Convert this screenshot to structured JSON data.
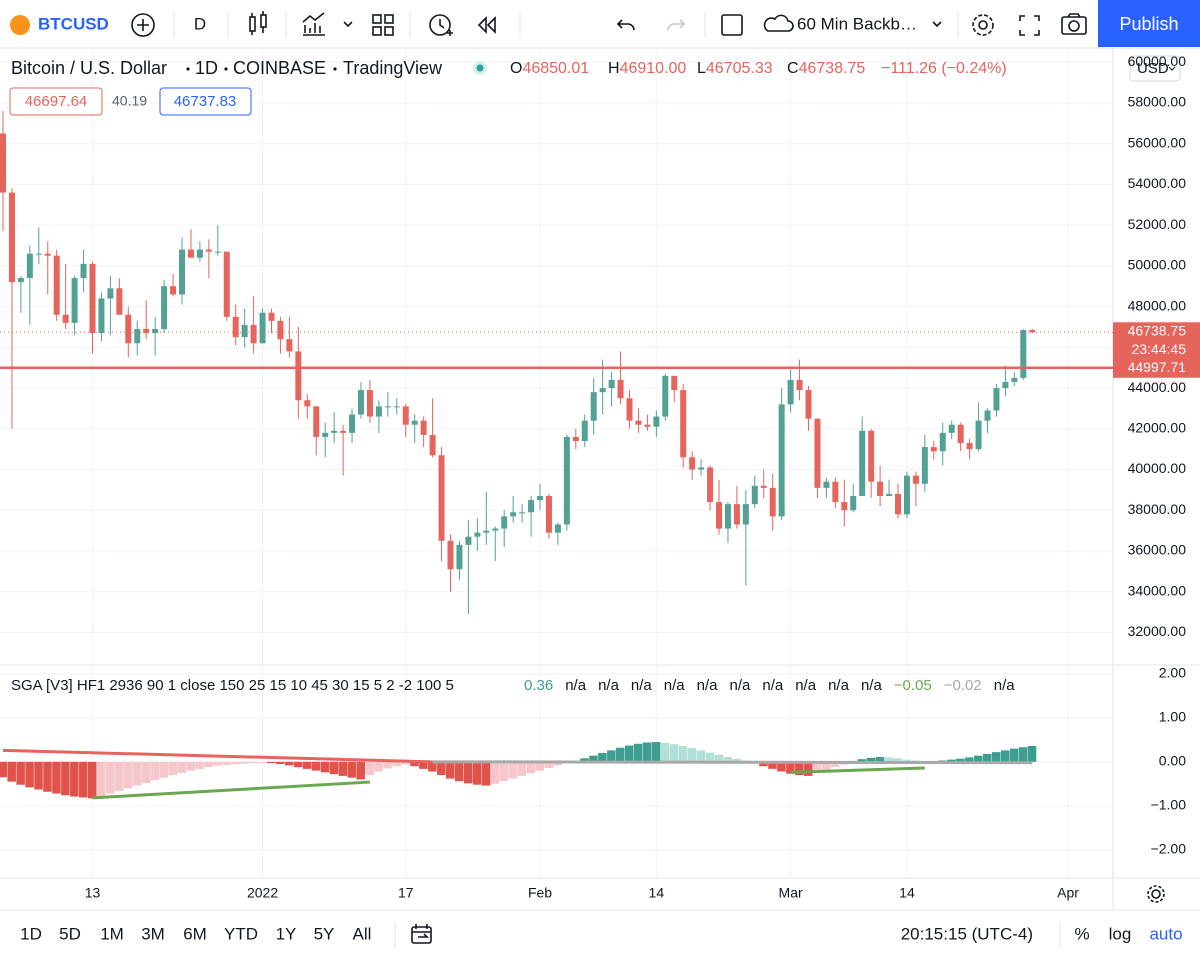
{
  "toolbar": {
    "symbol": "BTCUSD",
    "interval": "D",
    "layout_name": "60 Min Backb…",
    "publish": "Publish"
  },
  "legend": {
    "title": "Bitcoin / U.S. Dollar",
    "interval": "1D",
    "exchange": "COINBASE",
    "source": "TradingView",
    "ohlc": [
      {
        "label": "O",
        "value": "46850.01"
      },
      {
        "label": "H",
        "value": "46910.00"
      },
      {
        "label": "L",
        "value": "46705.33"
      },
      {
        "label": "C",
        "value": "46738.75"
      }
    ],
    "change": "−111.26 (−0.24%)",
    "bid": "46697.64",
    "spread": "40.19",
    "ask": "46737.83"
  },
  "currency": "USD",
  "chart_data": [
    {
      "type": "candlestick",
      "up_color": "#53a195",
      "down_color": "#e5645c",
      "x": [
        "2021-12-03",
        "2021-12-04",
        "2021-12-05",
        "2021-12-06",
        "2021-12-07",
        "2021-12-08",
        "2021-12-09",
        "2021-12-10",
        "2021-12-11",
        "2021-12-12",
        "2021-12-13",
        "2021-12-14",
        "2021-12-15",
        "2021-12-16",
        "2021-12-17",
        "2021-12-18",
        "2021-12-19",
        "2021-12-20",
        "2021-12-21",
        "2021-12-22",
        "2021-12-23",
        "2021-12-24",
        "2021-12-25",
        "2021-12-26",
        "2021-12-27",
        "2021-12-28",
        "2021-12-29",
        "2021-12-30",
        "2021-12-31",
        "2022-01-01",
        "2022-01-02",
        "2022-01-03",
        "2022-01-04",
        "2022-01-05",
        "2022-01-06",
        "2022-01-07",
        "2022-01-08",
        "2022-01-09",
        "2022-01-10",
        "2022-01-11",
        "2022-01-12",
        "2022-01-13",
        "2022-01-14",
        "2022-01-15",
        "2022-01-16",
        "2022-01-17",
        "2022-01-18",
        "2022-01-19",
        "2022-01-20",
        "2022-01-21",
        "2022-01-22",
        "2022-01-23",
        "2022-01-24",
        "2022-01-25",
        "2022-01-26",
        "2022-01-27",
        "2022-01-28",
        "2022-01-29",
        "2022-01-30",
        "2022-01-31",
        "2022-02-01",
        "2022-02-02",
        "2022-02-03",
        "2022-02-04",
        "2022-02-05",
        "2022-02-06",
        "2022-02-07",
        "2022-02-08",
        "2022-02-09",
        "2022-02-10",
        "2022-02-11",
        "2022-02-12",
        "2022-02-13",
        "2022-02-14",
        "2022-02-15",
        "2022-02-16",
        "2022-02-17",
        "2022-02-18",
        "2022-02-19",
        "2022-02-20",
        "2022-02-21",
        "2022-02-22",
        "2022-02-23",
        "2022-02-24",
        "2022-02-25",
        "2022-02-26",
        "2022-02-27",
        "2022-02-28",
        "2022-03-01",
        "2022-03-02",
        "2022-03-03",
        "2022-03-04",
        "2022-03-05",
        "2022-03-06",
        "2022-03-07",
        "2022-03-08",
        "2022-03-09",
        "2022-03-10",
        "2022-03-11",
        "2022-03-12",
        "2022-03-13",
        "2022-03-14",
        "2022-03-15",
        "2022-03-16",
        "2022-03-17",
        "2022-03-18",
        "2022-03-19",
        "2022-03-20",
        "2022-03-21",
        "2022-03-22",
        "2022-03-23",
        "2022-03-24",
        "2022-03-25",
        "2022-03-26",
        "2022-03-27",
        "2022-03-28"
      ],
      "open": [
        56500,
        53600,
        49200,
        49400,
        50600,
        50600,
        50500,
        47600,
        47200,
        49400,
        50100,
        46700,
        48400,
        48900,
        47600,
        46200,
        46900,
        46700,
        46900,
        49000,
        48600,
        50800,
        50400,
        50800,
        50700,
        50700,
        47500,
        46500,
        47100,
        46200,
        47700,
        47300,
        46400,
        45800,
        43400,
        43100,
        41600,
        41800,
        41900,
        41800,
        42700,
        43900,
        42600,
        43100,
        43100,
        43100,
        42200,
        42400,
        41700,
        40700,
        36500,
        35100,
        36300,
        36700,
        36900,
        37000,
        37100,
        37700,
        37900,
        37900,
        38500,
        38700,
        36900,
        37300,
        41600,
        41400,
        42400,
        43800,
        44000,
        44400,
        43500,
        42400,
        42200,
        42100,
        42600,
        44600,
        43900,
        40600,
        40000,
        40100,
        38400,
        37100,
        38300,
        37300,
        38300,
        39200,
        39100,
        37700,
        43200,
        44400,
        43900,
        42500,
        39100,
        39400,
        38400,
        38000,
        38700,
        41900,
        39400,
        38700,
        38800,
        37800,
        39700,
        39300,
        41100,
        40900,
        41800,
        42200,
        41300,
        41000,
        42400,
        42900,
        44000,
        44300,
        44500,
        46850.01
      ],
      "high": [
        57600,
        53800,
        49500,
        51000,
        51900,
        51200,
        50800,
        50100,
        49500,
        50800,
        50200,
        48700,
        49500,
        49400,
        48000,
        47300,
        48300,
        47500,
        49300,
        49600,
        51400,
        51800,
        51200,
        51300,
        52000,
        50700,
        48100,
        47900,
        48500,
        47900,
        47900,
        47500,
        47500,
        47000,
        43700,
        43100,
        42300,
        42800,
        42200,
        43000,
        44300,
        44400,
        43400,
        43800,
        43500,
        43200,
        42700,
        42600,
        43500,
        41100,
        36800,
        36500,
        37500,
        37600,
        38900,
        37200,
        38000,
        38700,
        38300,
        38700,
        39300,
        38800,
        37400,
        41700,
        42000,
        42700,
        44500,
        45400,
        44800,
        45800,
        43900,
        43000,
        42700,
        42900,
        44700,
        44600,
        44200,
        40900,
        40500,
        40200,
        39500,
        38400,
        39200,
        39000,
        39700,
        40000,
        39800,
        44000,
        44900,
        45400,
        44100,
        42500,
        39600,
        39600,
        39500,
        39300,
        42600,
        42000,
        40200,
        39500,
        39300,
        39900,
        39900,
        41700,
        41400,
        42300,
        42400,
        42300,
        41500,
        43300,
        43000,
        44200,
        45100,
        44800,
        46900,
        46910
      ],
      "low": [
        51700,
        42000,
        47700,
        47100,
        50100,
        48600,
        47300,
        46900,
        46600,
        48700,
        45700,
        46300,
        46600,
        47600,
        45500,
        45600,
        46400,
        45600,
        46700,
        48500,
        48100,
        50400,
        50200,
        49400,
        50500,
        47300,
        46100,
        46000,
        45700,
        46200,
        46700,
        45700,
        45500,
        42500,
        42500,
        40700,
        40600,
        41300,
        39700,
        41300,
        42500,
        42300,
        41800,
        42600,
        42700,
        41600,
        41300,
        41100,
        40600,
        35500,
        34000,
        34600,
        32900,
        36000,
        36300,
        35500,
        36200,
        37400,
        37400,
        36700,
        38000,
        36600,
        36300,
        37000,
        41000,
        41100,
        41700,
        42700,
        43100,
        43200,
        42000,
        41800,
        41900,
        41600,
        42400,
        43300,
        40100,
        39500,
        39700,
        38000,
        36800,
        36400,
        37100,
        34300,
        38100,
        38600,
        37000,
        37500,
        42800,
        43400,
        41900,
        38600,
        38600,
        38100,
        37200,
        37900,
        38700,
        38600,
        38200,
        38700,
        37600,
        37600,
        38200,
        38900,
        40500,
        40200,
        41500,
        40900,
        40500,
        40900,
        41800,
        42600,
        43600,
        44100,
        44400,
        46705.33
      ],
      "close": [
        53600,
        49200,
        49400,
        50600,
        50600,
        50500,
        47600,
        47200,
        49400,
        50100,
        46700,
        48400,
        48900,
        47600,
        46200,
        46900,
        46700,
        46900,
        49000,
        48600,
        50800,
        50400,
        50800,
        50700,
        50700,
        47500,
        46500,
        47100,
        46200,
        47700,
        47300,
        46400,
        45800,
        43400,
        43100,
        41600,
        41800,
        41900,
        41800,
        42700,
        43900,
        42600,
        43100,
        43100,
        43100,
        42200,
        42400,
        41700,
        40700,
        36500,
        35100,
        36300,
        36700,
        36900,
        37000,
        37100,
        37700,
        37900,
        37900,
        38500,
        38700,
        36900,
        37300,
        41600,
        41400,
        42400,
        43800,
        44000,
        44400,
        43500,
        42400,
        42200,
        42100,
        42600,
        44600,
        43900,
        40600,
        40000,
        40100,
        38400,
        37100,
        38300,
        37300,
        38300,
        39200,
        39100,
        37700,
        43200,
        44400,
        43900,
        42500,
        39100,
        39400,
        38400,
        38000,
        38700,
        41900,
        39400,
        38700,
        38800,
        37800,
        39700,
        39300,
        41100,
        40900,
        41800,
        42200,
        41300,
        41000,
        42400,
        42900,
        44000,
        44300,
        44500,
        46850,
        46738.75
      ],
      "ylim": [
        30400,
        60700
      ],
      "yticks": [
        {
          "value": 32000,
          "label": "32000.00"
        },
        {
          "value": 34000,
          "label": "34000.00"
        },
        {
          "value": 36000,
          "label": "36000.00"
        },
        {
          "value": 38000,
          "label": "38000.00"
        },
        {
          "value": 40000,
          "label": "40000.00"
        },
        {
          "value": 42000,
          "label": "42000.00"
        },
        {
          "value": 44000,
          "label": "44000.00"
        },
        {
          "value": 46000,
          "label": "46000.00"
        },
        {
          "value": 48000,
          "label": "48000.00"
        },
        {
          "value": 50000,
          "label": "50000.00"
        },
        {
          "value": 52000,
          "label": "52000.00"
        },
        {
          "value": 54000,
          "label": "54000.00"
        },
        {
          "value": 56000,
          "label": "56000.00"
        },
        {
          "value": 58000,
          "label": "58000.00"
        },
        {
          "value": 60000,
          "label": "60000.00"
        }
      ],
      "xticks": [
        {
          "value": "2021-12-13",
          "label": "13"
        },
        {
          "value": "2022-01-01",
          "label": "2022"
        },
        {
          "value": "2022-01-17",
          "label": "17"
        },
        {
          "value": "2022-02-01",
          "label": "Feb"
        },
        {
          "value": "2022-02-14",
          "label": "14"
        },
        {
          "value": "2022-03-01",
          "label": "Mar"
        },
        {
          "value": "2022-03-14",
          "label": "14"
        },
        {
          "value": "2022-04-01",
          "label": "Apr"
        }
      ],
      "price_lines": [
        {
          "value": 46738.75,
          "countdown": "23:44:45",
          "dotted": true,
          "color": "#e5645c"
        },
        {
          "value": 44997.71,
          "dotted": false,
          "color": "#e5645c"
        }
      ],
      "grid": true
    },
    {
      "type": "bar",
      "title": "SGA [V3] HF1 2936 90 1 close 150 25 15 10 45 30 15 5 2 -2 100 5",
      "legend_values": [
        {
          "text": "0.36",
          "color": "#3d9d8f"
        },
        {
          "text": "n/a",
          "color": "#131722"
        },
        {
          "text": "n/a",
          "color": "#131722"
        },
        {
          "text": "n/a",
          "color": "#131722"
        },
        {
          "text": "n/a",
          "color": "#131722"
        },
        {
          "text": "n/a",
          "color": "#131722"
        },
        {
          "text": "n/a",
          "color": "#131722"
        },
        {
          "text": "n/a",
          "color": "#131722"
        },
        {
          "text": "n/a",
          "color": "#131722"
        },
        {
          "text": "n/a",
          "color": "#131722"
        },
        {
          "text": "n/a",
          "color": "#131722"
        },
        {
          "text": "−0.05",
          "color": "#6aa84f"
        },
        {
          "text": "−0.02",
          "color": "#a8a8a8"
        },
        {
          "text": "n/a",
          "color": "#131722"
        }
      ],
      "colors": {
        "pos_rising": "#3d9d8f",
        "pos_falling": "#b2dfd9",
        "neg_falling": "#e0524a",
        "neg_rising": "#f7c6cb"
      },
      "values": [
        -0.35,
        -0.45,
        -0.52,
        -0.58,
        -0.63,
        -0.68,
        -0.72,
        -0.76,
        -0.79,
        -0.81,
        -0.83,
        -0.78,
        -0.72,
        -0.66,
        -0.6,
        -0.54,
        -0.48,
        -0.42,
        -0.36,
        -0.3,
        -0.25,
        -0.2,
        -0.16,
        -0.12,
        -0.09,
        -0.07,
        -0.05,
        -0.04,
        -0.03,
        -0.02,
        -0.03,
        -0.05,
        -0.08,
        -0.12,
        -0.16,
        -0.2,
        -0.24,
        -0.28,
        -0.32,
        -0.36,
        -0.4,
        -0.3,
        -0.22,
        -0.15,
        -0.1,
        -0.06,
        -0.1,
        -0.16,
        -0.22,
        -0.3,
        -0.38,
        -0.44,
        -0.49,
        -0.52,
        -0.54,
        -0.5,
        -0.44,
        -0.38,
        -0.32,
        -0.26,
        -0.2,
        -0.14,
        -0.08,
        -0.03,
        0.03,
        0.08,
        0.14,
        0.2,
        0.26,
        0.32,
        0.37,
        0.41,
        0.44,
        0.45,
        0.43,
        0.4,
        0.36,
        0.31,
        0.26,
        0.21,
        0.16,
        0.11,
        0.07,
        0.03,
        -0.04,
        -0.1,
        -0.16,
        -0.22,
        -0.27,
        -0.3,
        -0.32,
        -0.25,
        -0.18,
        -0.12,
        -0.06,
        0.02,
        0.06,
        0.09,
        0.11,
        0.1,
        0.08,
        0.05,
        0.03,
        0.02,
        0.02,
        0.03,
        0.05,
        0.07,
        0.1,
        0.14,
        0.18,
        0.22,
        0.26,
        0.3,
        0.33,
        0.36
      ],
      "lines": [
        {
          "color": "#e5645c",
          "width": 3,
          "x": [
            "2021-12-03",
            "2022-01-20"
          ],
          "values": [
            0.26,
            0.0
          ]
        },
        {
          "color": "#a8a8a8",
          "width": 3,
          "x": [
            "2022-01-20",
            "2022-03-28"
          ],
          "values": [
            0.0,
            -0.02
          ]
        },
        {
          "color": "#6aa84f",
          "width": 3,
          "x": [
            "2021-12-13",
            "2022-01-13"
          ],
          "values": [
            -0.82,
            -0.46
          ]
        },
        {
          "color": "#6aa84f",
          "width": 3,
          "x": [
            "2022-03-01",
            "2022-03-16"
          ],
          "values": [
            -0.24,
            -0.14
          ]
        }
      ],
      "ylim": [
        -2.64,
        2.2
      ],
      "yticks": [
        {
          "value": 2,
          "label": "2.00"
        },
        {
          "value": 1,
          "label": "1.00"
        },
        {
          "value": 0,
          "label": "0.00"
        },
        {
          "value": -1,
          "label": "−1.00"
        },
        {
          "value": -2,
          "label": "−2.00"
        }
      ],
      "grid": true
    }
  ],
  "bottom_bar": {
    "ranges": [
      "1D",
      "5D",
      "1M",
      "3M",
      "6M",
      "YTD",
      "1Y",
      "5Y",
      "All"
    ],
    "clock": "20:15:15 (UTC-4)",
    "percent": "%",
    "log": "log",
    "auto": "auto"
  }
}
